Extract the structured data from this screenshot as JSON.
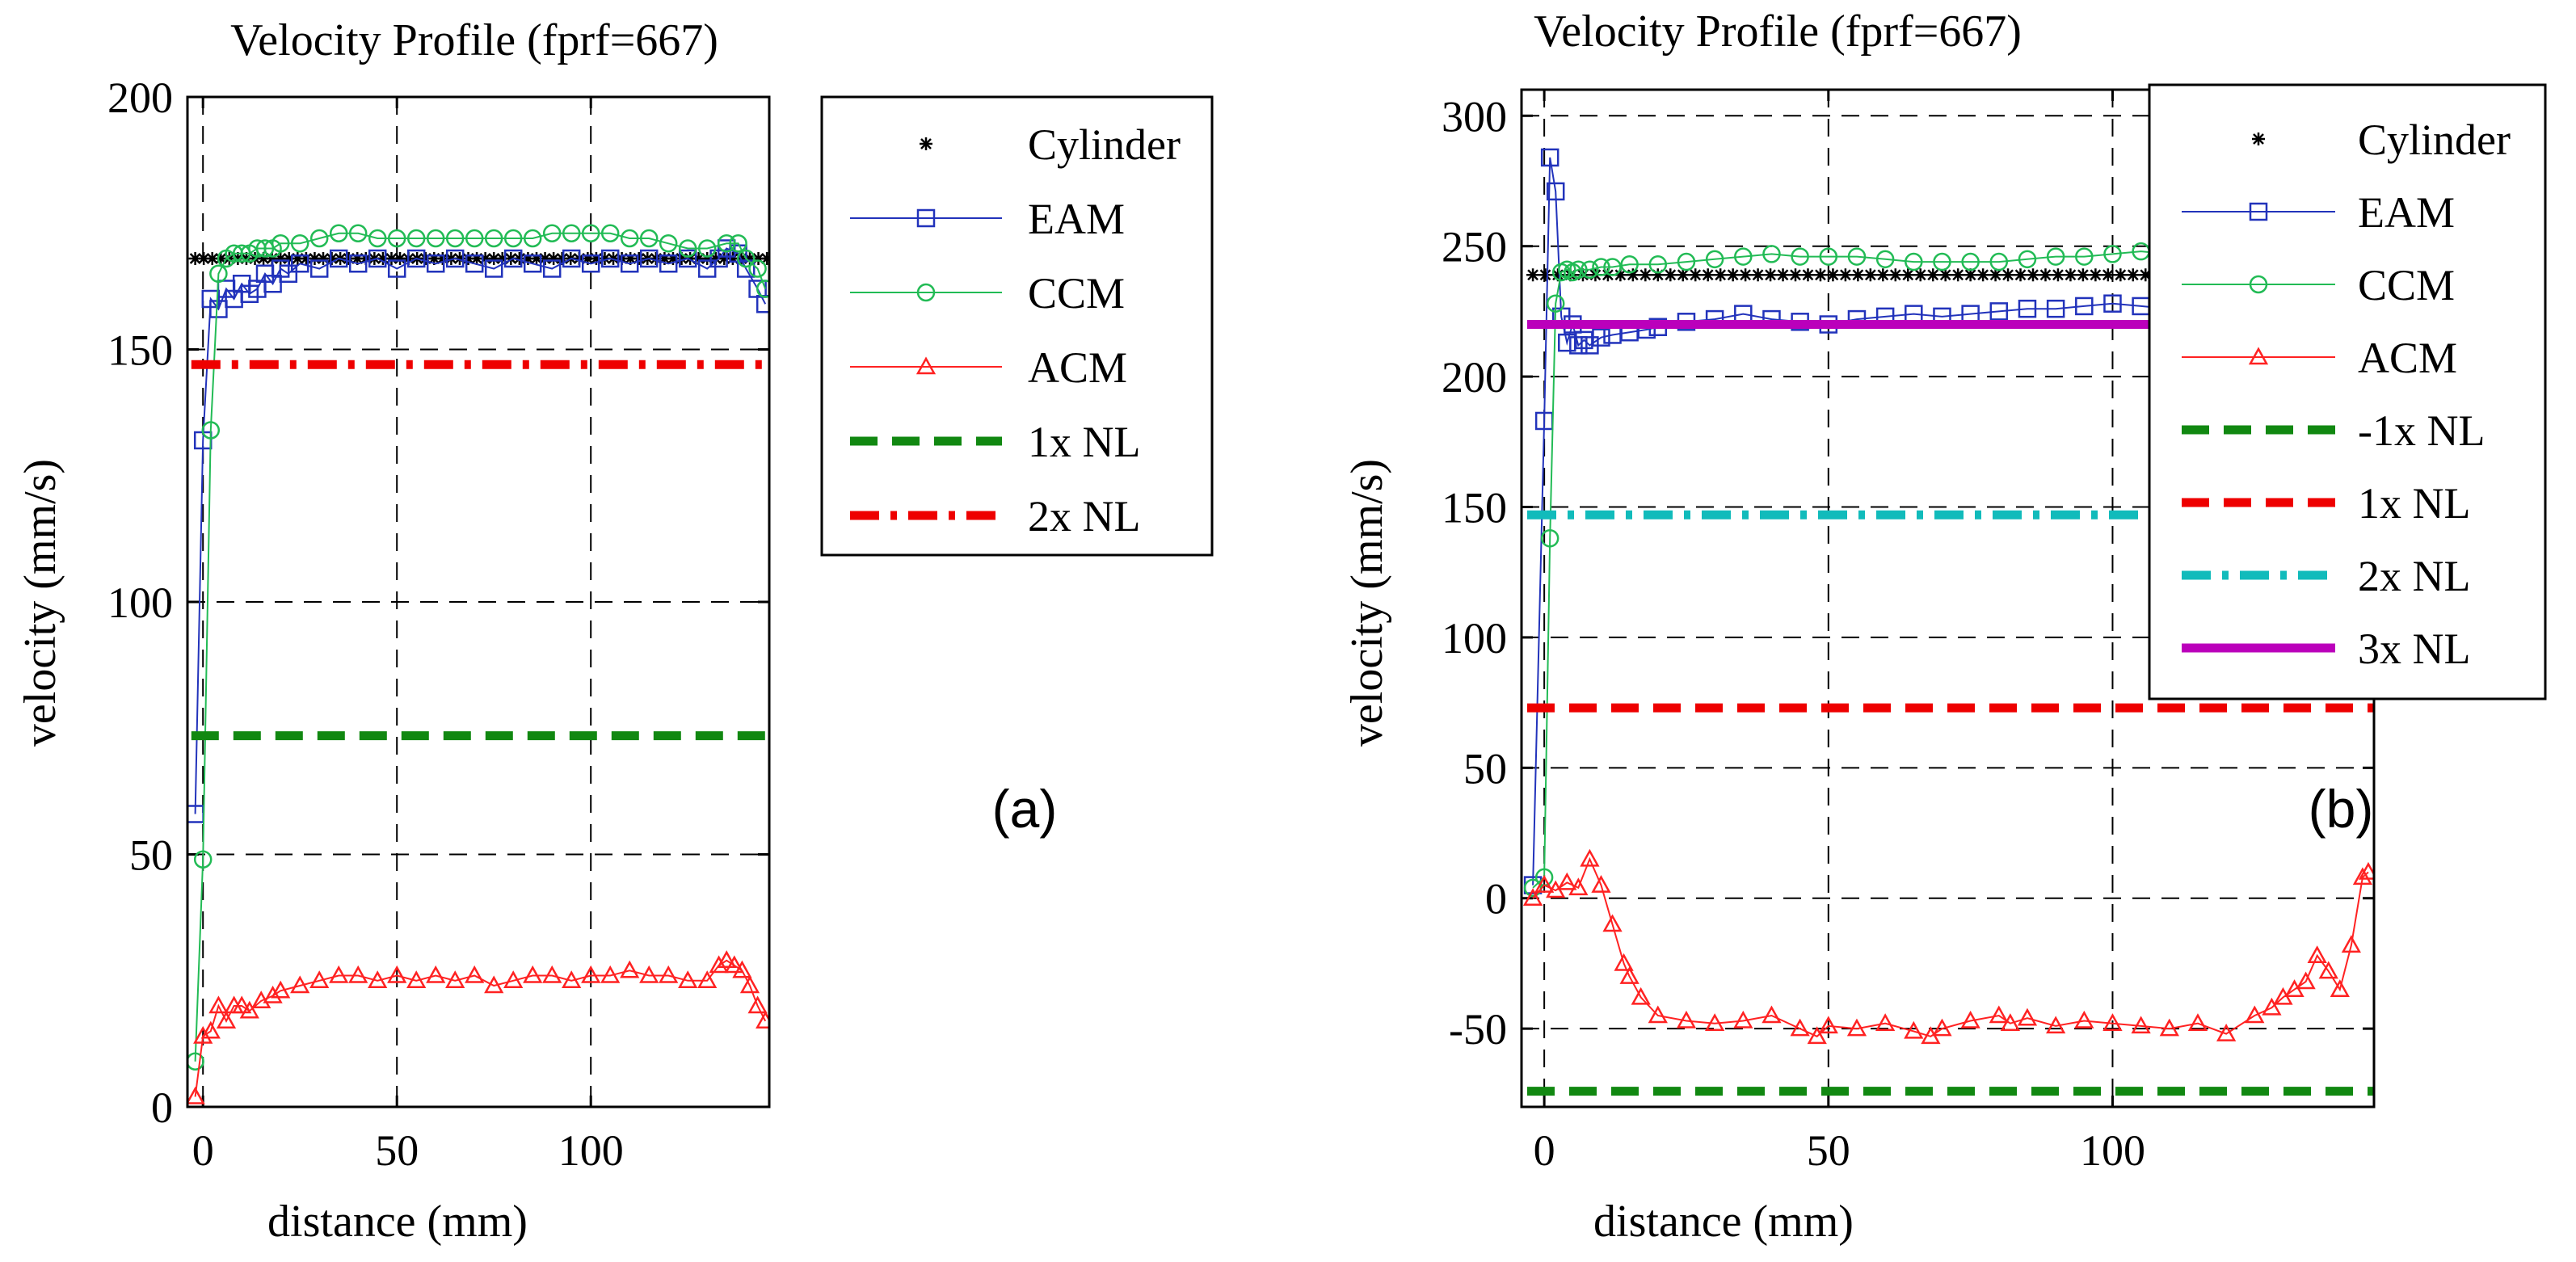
{
  "chart_data": [
    {
      "type": "line",
      "title": "Velocity Profile (fprf=667)",
      "xlabel": "distance (mm)",
      "ylabel": "velocity (mm/s)",
      "panel_label": "(a)",
      "xlim": [
        -4,
        146
      ],
      "ylim": [
        0,
        200
      ],
      "xticks": [
        0,
        50,
        100
      ],
      "yticks": [
        0,
        50,
        100,
        150,
        200
      ],
      "grid": true,
      "legend_position": "outside-right-top",
      "series": [
        {
          "name": "Cylinder",
          "color": "#000000",
          "style": "star-line",
          "x": [
            -3,
            146
          ],
          "y": [
            168,
            168
          ]
        },
        {
          "name": "EAM",
          "color": "#2233bb",
          "style": "square-line",
          "x": [
            -2,
            0,
            2,
            4,
            6,
            8,
            10,
            12,
            14,
            16,
            18,
            20,
            22,
            25,
            30,
            35,
            40,
            45,
            50,
            55,
            60,
            65,
            70,
            75,
            80,
            85,
            90,
            95,
            100,
            105,
            110,
            115,
            120,
            125,
            130,
            133,
            135,
            138,
            140,
            143,
            145
          ],
          "y": [
            58,
            132,
            160,
            158,
            162,
            160,
            163,
            161,
            162,
            165,
            163,
            166,
            165,
            167,
            166,
            168,
            167,
            168,
            166,
            168,
            167,
            168,
            167,
            166,
            168,
            167,
            166,
            168,
            167,
            168,
            167,
            168,
            167,
            168,
            166,
            168,
            170,
            169,
            166,
            162,
            159
          ]
        },
        {
          "name": "CCM",
          "color": "#22bb55",
          "style": "circle-line",
          "x": [
            -2,
            0,
            2,
            4,
            6,
            8,
            10,
            12,
            14,
            16,
            18,
            20,
            25,
            30,
            35,
            40,
            45,
            50,
            55,
            60,
            65,
            70,
            75,
            80,
            85,
            90,
            95,
            100,
            105,
            110,
            115,
            120,
            125,
            130,
            135,
            138,
            140,
            143,
            145
          ],
          "y": [
            9,
            49,
            134,
            165,
            168,
            169,
            169,
            169,
            170,
            170,
            170,
            171,
            171,
            172,
            173,
            173,
            172,
            172,
            172,
            172,
            172,
            172,
            172,
            172,
            172,
            173,
            173,
            173,
            173,
            172,
            172,
            171,
            170,
            170,
            171,
            171,
            168,
            166,
            162
          ]
        },
        {
          "name": "ACM",
          "color": "#ff2222",
          "style": "triangle-line",
          "x": [
            -2,
            0,
            2,
            4,
            6,
            8,
            10,
            12,
            15,
            18,
            20,
            25,
            30,
            35,
            40,
            45,
            50,
            55,
            60,
            65,
            70,
            75,
            80,
            85,
            90,
            95,
            100,
            105,
            110,
            115,
            120,
            125,
            130,
            133,
            135,
            137,
            139,
            141,
            143,
            145
          ],
          "y": [
            2,
            14,
            15,
            20,
            17,
            20,
            20,
            19,
            21,
            22,
            23,
            24,
            25,
            26,
            26,
            25,
            26,
            25,
            26,
            25,
            26,
            24,
            25,
            26,
            26,
            25,
            26,
            26,
            27,
            26,
            26,
            25,
            25,
            28,
            29,
            28,
            27,
            24,
            20,
            17
          ]
        },
        {
          "name": "1x NL",
          "color": "#118811",
          "style": "dash-thick",
          "x": [
            -3,
            146
          ],
          "y": [
            73.5,
            73.5
          ]
        },
        {
          "name": "2x NL",
          "color": "#ee0000",
          "style": "dashdot-thick",
          "x": [
            -3,
            146
          ],
          "y": [
            147,
            147
          ]
        }
      ]
    },
    {
      "type": "line",
      "title": "Velocity Profile (fprf=667)",
      "xlabel": "distance (mm)",
      "ylabel": "velocity (mm/s)",
      "panel_label": "(b)",
      "xlim": [
        -4,
        146
      ],
      "ylim": [
        -80,
        310
      ],
      "xticks": [
        0,
        50,
        100
      ],
      "yticks": [
        -50,
        0,
        50,
        100,
        150,
        200,
        250,
        300
      ],
      "grid": true,
      "legend_position": "outside-right-top",
      "series": [
        {
          "name": "Cylinder",
          "color": "#000000",
          "style": "star-line",
          "x": [
            -3,
            146
          ],
          "y": [
            239,
            239
          ]
        },
        {
          "name": "EAM",
          "color": "#2233bb",
          "style": "square-line",
          "x": [
            -2,
            0,
            1,
            2,
            3,
            4,
            5,
            6,
            7,
            8,
            10,
            12,
            15,
            18,
            20,
            25,
            30,
            35,
            40,
            45,
            50,
            55,
            60,
            65,
            70,
            75,
            80,
            85,
            90,
            95,
            100,
            105,
            110,
            115,
            120,
            125,
            130,
            135,
            138,
            140,
            143,
            145
          ],
          "y": [
            5,
            183,
            284,
            271,
            223,
            213,
            220,
            212,
            214,
            212,
            215,
            216,
            217,
            218,
            219,
            221,
            222,
            224,
            222,
            221,
            220,
            222,
            223,
            224,
            223,
            224,
            225,
            226,
            226,
            227,
            228,
            227,
            226,
            225,
            224,
            224,
            223,
            225,
            227,
            223,
            218,
            213
          ]
        },
        {
          "name": "CCM",
          "color": "#22bb55",
          "style": "circle-line",
          "x": [
            -2,
            0,
            1,
            2,
            3,
            4,
            5,
            6,
            8,
            10,
            12,
            15,
            20,
            25,
            30,
            35,
            40,
            45,
            50,
            55,
            60,
            65,
            70,
            75,
            80,
            85,
            90,
            95,
            100,
            105,
            110,
            115,
            120,
            125,
            130,
            135,
            140,
            143,
            145
          ],
          "y": [
            4,
            8,
            138,
            228,
            240,
            241,
            240,
            241,
            241,
            242,
            242,
            243,
            243,
            244,
            245,
            246,
            247,
            246,
            246,
            246,
            245,
            244,
            244,
            244,
            244,
            245,
            246,
            246,
            247,
            248,
            247,
            246,
            245,
            244,
            243,
            243,
            243,
            241,
            232
          ]
        },
        {
          "name": "ACM",
          "color": "#ff2222",
          "style": "triangle-line",
          "x": [
            -2,
            0,
            2,
            4,
            6,
            8,
            10,
            12,
            14,
            15,
            17,
            20,
            25,
            30,
            35,
            40,
            45,
            48,
            50,
            55,
            60,
            65,
            68,
            70,
            75,
            80,
            82,
            85,
            90,
            95,
            100,
            105,
            110,
            115,
            120,
            125,
            128,
            130,
            132,
            134,
            136,
            138,
            140,
            142,
            144,
            145
          ],
          "y": [
            0,
            5,
            3,
            6,
            4,
            15,
            5,
            -10,
            -25,
            -30,
            -38,
            -45,
            -47,
            -48,
            -47,
            -45,
            -50,
            -53,
            -49,
            -50,
            -48,
            -51,
            -53,
            -50,
            -47,
            -45,
            -48,
            -46,
            -49,
            -47,
            -48,
            -49,
            -50,
            -48,
            -52,
            -45,
            -42,
            -38,
            -35,
            -32,
            -22,
            -28,
            -35,
            -18,
            8,
            10
          ]
        },
        {
          "name": "-1x NL",
          "color": "#118811",
          "style": "dash-thick",
          "x": [
            -3,
            146
          ],
          "y": [
            -74,
            -74
          ]
        },
        {
          "name": "1x NL",
          "color": "#ee0000",
          "style": "dash-thick",
          "x": [
            -3,
            146
          ],
          "y": [
            73,
            73
          ]
        },
        {
          "name": "2x NL",
          "color": "#11bbbb",
          "style": "dashdot-thick",
          "x": [
            -3,
            146
          ],
          "y": [
            147,
            147
          ]
        },
        {
          "name": "3x NL",
          "color": "#bb00bb",
          "style": "solid-thick",
          "x": [
            -3,
            146
          ],
          "y": [
            220,
            220
          ]
        }
      ]
    }
  ]
}
